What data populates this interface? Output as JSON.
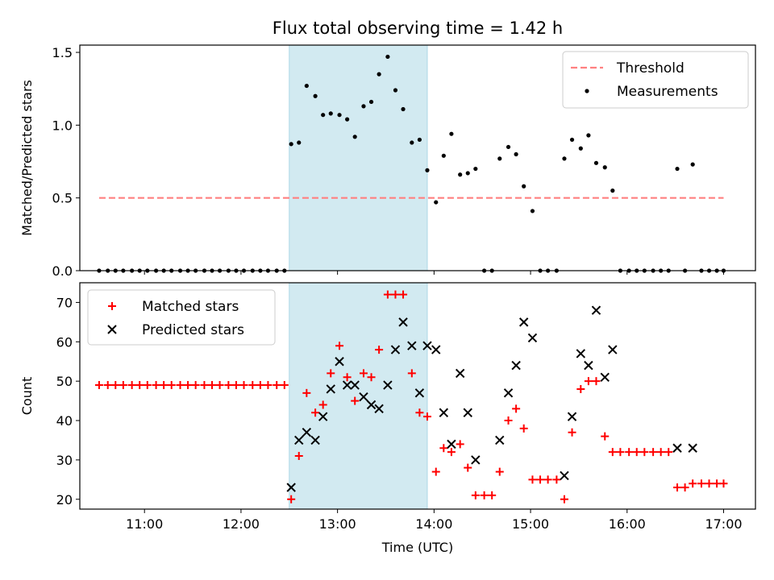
{
  "title": "Flux total observing time = 1.42 h",
  "colors": {
    "threshold": "#ff8080",
    "measurement": "#000000",
    "matched": "#ff0000",
    "predicted": "#000000",
    "shade": "#add8e6"
  },
  "chart_data": [
    {
      "type": "scatter",
      "ylabel": "Matched/Predicted stars",
      "xlim": [
        10.33,
        17.33
      ],
      "ylim": [
        0,
        1.55
      ],
      "yticks": [
        {
          "v": 0.0,
          "label": "0.0"
        },
        {
          "v": 0.5,
          "label": "0.5"
        },
        {
          "v": 1.0,
          "label": "1.0"
        },
        {
          "v": 1.5,
          "label": "1.5"
        }
      ],
      "shaded_span": [
        12.5,
        13.93
      ],
      "threshold": {
        "name": "Threshold",
        "y": 0.5,
        "x": [
          10.53,
          17.0
        ]
      },
      "legend": {
        "placement": "upper right",
        "entries": [
          "Threshold",
          "Measurements"
        ]
      },
      "series": [
        {
          "name": "Measurements",
          "marker": "dot",
          "x": [
            10.53,
            10.62,
            10.7,
            10.78,
            10.87,
            10.95,
            11.03,
            11.12,
            11.2,
            11.28,
            11.37,
            11.45,
            11.53,
            11.62,
            11.7,
            11.78,
            11.87,
            11.95,
            12.03,
            12.12,
            12.2,
            12.28,
            12.37,
            12.45,
            12.52,
            12.6,
            12.68,
            12.77,
            12.85,
            12.93,
            13.02,
            13.1,
            13.18,
            13.27,
            13.35,
            13.43,
            13.52,
            13.6,
            13.68,
            13.77,
            13.85,
            13.93,
            14.02,
            14.1,
            14.18,
            14.27,
            14.35,
            14.43,
            14.52,
            14.6,
            14.68,
            14.77,
            14.85,
            14.93,
            15.02,
            15.1,
            15.18,
            15.27,
            15.35,
            15.43,
            15.52,
            15.6,
            15.68,
            15.77,
            15.85,
            15.93,
            16.02,
            16.1,
            16.18,
            16.27,
            16.35,
            16.43,
            16.52,
            16.6,
            16.68,
            16.77,
            16.85,
            16.93,
            17.0
          ],
          "y": [
            0,
            0,
            0,
            0,
            0,
            0,
            0,
            0,
            0,
            0,
            0,
            0,
            0,
            0,
            0,
            0,
            0,
            0,
            0,
            0,
            0,
            0,
            0,
            0,
            0.87,
            0.88,
            1.27,
            1.2,
            1.07,
            1.08,
            1.07,
            1.04,
            0.92,
            1.13,
            1.16,
            1.35,
            1.47,
            1.24,
            1.11,
            0.88,
            0.9,
            0.69,
            0.47,
            0.79,
            0.94,
            0.66,
            0.67,
            0.7,
            0,
            0,
            0.77,
            0.85,
            0.8,
            0.58,
            0.41,
            0,
            0,
            0,
            0.77,
            0.9,
            0.84,
            0.93,
            0.74,
            0.71,
            0.55,
            0,
            0,
            0,
            0,
            0,
            0,
            0,
            0.7,
            0,
            0.73,
            0,
            0,
            0,
            0
          ]
        }
      ]
    },
    {
      "type": "scatter",
      "ylabel": "Count",
      "xlabel": "Time (UTC)",
      "xlim": [
        10.33,
        17.33
      ],
      "ylim": [
        17.5,
        75
      ],
      "yticks": [
        {
          "v": 20,
          "label": "20"
        },
        {
          "v": 30,
          "label": "30"
        },
        {
          "v": 40,
          "label": "40"
        },
        {
          "v": 50,
          "label": "50"
        },
        {
          "v": 60,
          "label": "60"
        },
        {
          "v": 70,
          "label": "70"
        }
      ],
      "xticks": [
        {
          "v": 11,
          "label": "11:00"
        },
        {
          "v": 12,
          "label": "12:00"
        },
        {
          "v": 13,
          "label": "13:00"
        },
        {
          "v": 14,
          "label": "14:00"
        },
        {
          "v": 15,
          "label": "15:00"
        },
        {
          "v": 16,
          "label": "16:00"
        },
        {
          "v": 17,
          "label": "17:00"
        }
      ],
      "shaded_span": [
        12.5,
        13.93
      ],
      "legend": {
        "placement": "upper left",
        "entries": [
          "Matched stars",
          "Predicted stars"
        ]
      },
      "series": [
        {
          "name": "Matched stars",
          "marker": "plus",
          "x": [
            10.53,
            10.62,
            10.7,
            10.78,
            10.87,
            10.95,
            11.03,
            11.12,
            11.2,
            11.28,
            11.37,
            11.45,
            11.53,
            11.62,
            11.7,
            11.78,
            11.87,
            11.95,
            12.03,
            12.12,
            12.2,
            12.28,
            12.37,
            12.45,
            12.52,
            12.6,
            12.68,
            12.77,
            12.85,
            12.93,
            13.02,
            13.1,
            13.18,
            13.27,
            13.35,
            13.43,
            13.52,
            13.6,
            13.68,
            13.77,
            13.85,
            13.93,
            14.02,
            14.1,
            14.18,
            14.27,
            14.35,
            14.43,
            14.52,
            14.6,
            14.68,
            14.77,
            14.85,
            14.93,
            15.02,
            15.1,
            15.18,
            15.27,
            15.35,
            15.43,
            15.52,
            15.6,
            15.68,
            15.77,
            15.85,
            15.93,
            16.02,
            16.1,
            16.18,
            16.27,
            16.35,
            16.43,
            16.52,
            16.6,
            16.68,
            16.77,
            16.85,
            16.93,
            17.0
          ],
          "y": [
            49,
            49,
            49,
            49,
            49,
            49,
            49,
            49,
            49,
            49,
            49,
            49,
            49,
            49,
            49,
            49,
            49,
            49,
            49,
            49,
            49,
            49,
            49,
            49,
            20,
            31,
            47,
            42,
            44,
            52,
            59,
            51,
            45,
            52,
            51,
            58,
            72,
            72,
            72,
            52,
            42,
            41,
            27,
            33,
            32,
            34,
            28,
            21,
            21,
            21,
            27,
            40,
            43,
            38,
            25,
            25,
            25,
            25,
            20,
            37,
            48,
            50,
            50,
            36,
            32,
            32,
            32,
            32,
            32,
            32,
            32,
            32,
            23,
            23,
            24,
            24,
            24,
            24,
            24
          ]
        },
        {
          "name": "Predicted stars",
          "marker": "x",
          "x": [
            12.52,
            12.6,
            12.68,
            12.77,
            12.85,
            12.93,
            13.02,
            13.1,
            13.18,
            13.27,
            13.35,
            13.43,
            13.52,
            13.6,
            13.68,
            13.77,
            13.85,
            13.93,
            14.02,
            14.1,
            14.18,
            14.27,
            14.35,
            14.43,
            14.68,
            14.77,
            14.85,
            14.93,
            15.02,
            15.35,
            15.43,
            15.52,
            15.6,
            15.68,
            15.77,
            15.85,
            16.52,
            16.68
          ],
          "y": [
            23,
            35,
            37,
            35,
            41,
            48,
            55,
            49,
            49,
            46,
            44,
            43,
            49,
            58,
            65,
            59,
            47,
            59,
            58,
            42,
            34,
            52,
            42,
            30,
            35,
            47,
            54,
            65,
            61,
            26,
            41,
            57,
            54,
            68,
            51,
            58,
            33,
            33
          ]
        }
      ]
    }
  ]
}
